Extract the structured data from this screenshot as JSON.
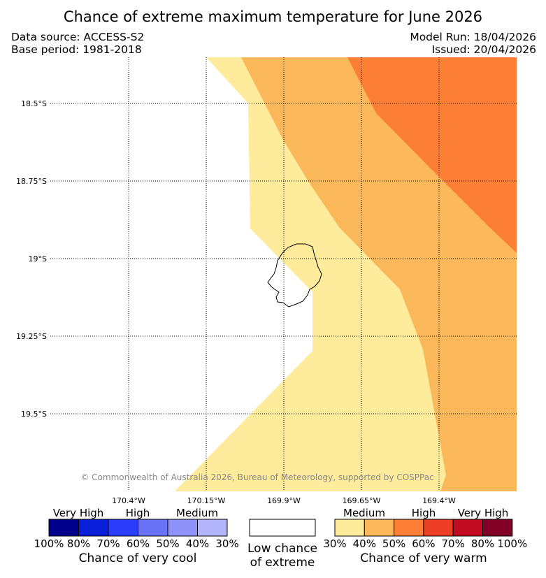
{
  "title": "Chance of extreme maximum temperature for June 2026",
  "data_source": "Data source: ACCESS-S2",
  "base_period": "Base period: 1981-2018",
  "model_run": "Model Run: 18/04/2026",
  "issued": "Issued: 20/04/2026",
  "map": {
    "lat_labels": [
      "18.5°S",
      "18.75°S",
      "19°S",
      "19.25°S",
      "19.5°S"
    ],
    "lon_labels": [
      "170.4°W",
      "170.15°W",
      "169.9°W",
      "169.65°W",
      "169.4°W"
    ],
    "copyright": "© Commonwealth of Australia 2026, Bureau of Meteorology, supported by COSPPac"
  },
  "legend": {
    "cool": {
      "categories": [
        "Very High",
        "High",
        "Medium"
      ],
      "ticks": [
        "100%",
        "80%",
        "70%",
        "60%",
        "50%",
        "40%",
        "30%"
      ],
      "colors": [
        "#00008b",
        "#0a1fd9",
        "#2b3dfb",
        "#6a72f8",
        "#8f93f9",
        "#b3b5fb"
      ],
      "title": "Chance of very cool"
    },
    "low": {
      "line1": "Low chance",
      "line2": "of extreme",
      "color": "#ffffff"
    },
    "warm": {
      "categories": [
        "Medium",
        "High",
        "Very High"
      ],
      "ticks": [
        "30%",
        "40%",
        "50%",
        "60%",
        "70%",
        "80%",
        "100%"
      ],
      "colors": [
        "#feeb9b",
        "#fbb85a",
        "#fd7f35",
        "#ec3f26",
        "#c20a22",
        "#800026"
      ],
      "title": "Chance of very warm"
    }
  }
}
